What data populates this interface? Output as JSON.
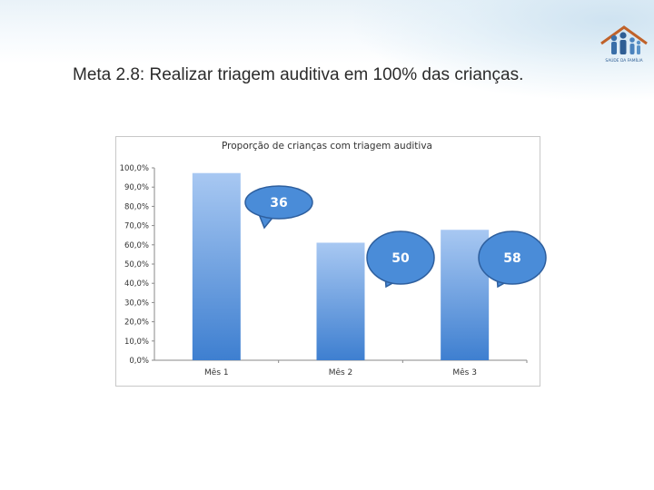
{
  "slide": {
    "title": "Meta 2.8: Realizar triagem auditiva em 100% das crianças.",
    "logo": {
      "icon": "family-house-logo-icon",
      "text": "SAÚDE DA FAMÍLIA"
    }
  },
  "chart_data": {
    "type": "bar",
    "title": "Proporção de crianças com triagem auditiva",
    "categories": [
      "Mês 1",
      "Mês 2",
      "Mês 3"
    ],
    "values": [
      97.3,
      61.1,
      67.8
    ],
    "ylim": [
      0,
      100
    ],
    "y_ticks": [
      "0,0%",
      "10,0%",
      "20,0%",
      "30,0%",
      "40,0%",
      "50,0%",
      "60,0%",
      "70,0%",
      "80,0%",
      "90,0%",
      "100,0%"
    ],
    "callouts": [
      "36",
      "50",
      "58"
    ],
    "grid": false,
    "legend": "none",
    "colors": {
      "bar_top": "#a8c8f2",
      "bar_bottom": "#3e7fd0",
      "callout_fill": "#4a8cd8",
      "callout_border": "#2e5f9e"
    }
  }
}
